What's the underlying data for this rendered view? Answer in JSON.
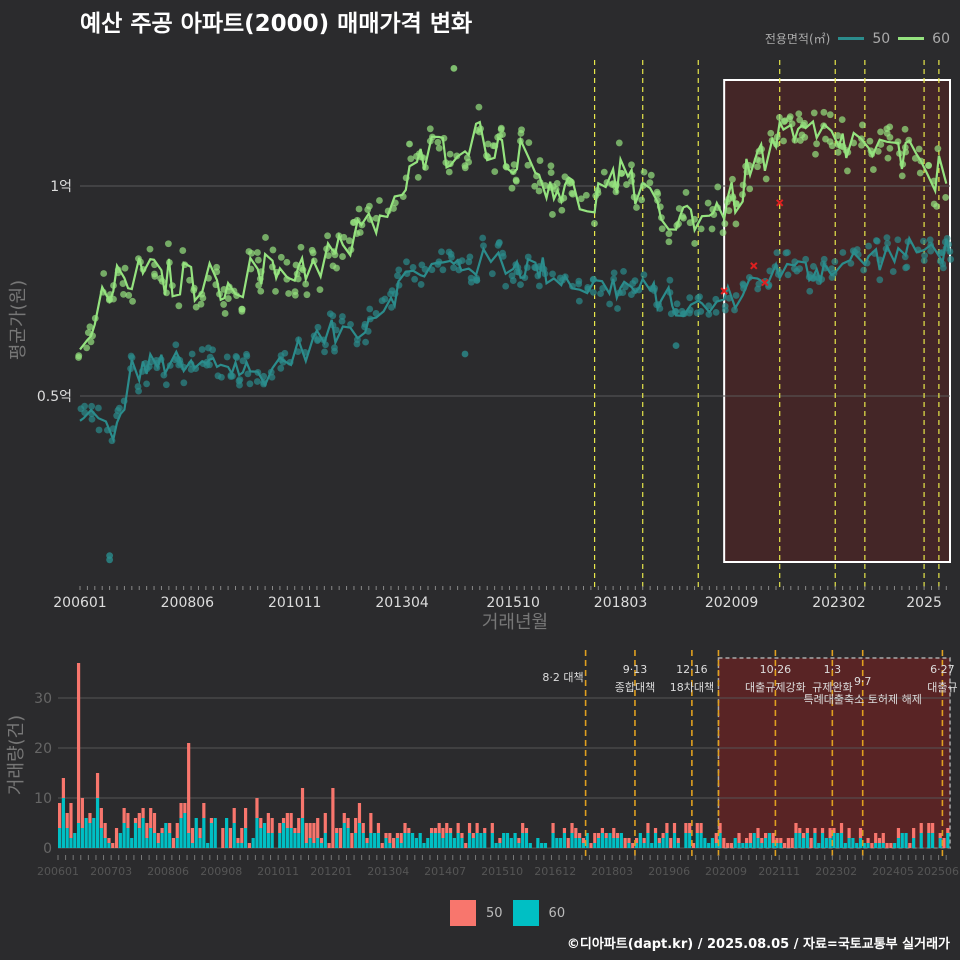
{
  "title": "예산 주공 아파트(2000) 매매가격 변화",
  "source": "©디아파트(dapt.kr) / 2025.08.05 / 자료=국토교통부 실거래가",
  "colors": {
    "bg": "#2b2b2d",
    "s50": "#2b8c8c",
    "s60": "#95e37f",
    "bar50": "#f8766d",
    "bar60": "#00bfc4",
    "vline": "#e8e84a",
    "vline2": "#e0a020",
    "highlight": "#5a2323"
  },
  "legend_top": {
    "title": "전용면적(㎡)",
    "items": [
      "50",
      "60"
    ]
  },
  "legend_bottom": {
    "items": [
      "50",
      "60"
    ]
  },
  "chart_data": [
    {
      "type": "line",
      "xlabel": "거래년월",
      "ylabel": "평균가(원)",
      "x_ticks": [
        "200601",
        "200806",
        "201011",
        "201304",
        "201510",
        "201803",
        "202009",
        "202302",
        "2025"
      ],
      "y_ticks": [
        {
          "value": 0.5,
          "label": "0.5억"
        },
        {
          "value": 1.0,
          "label": "1억"
        }
      ],
      "ylim": [
        0.05,
        1.3
      ],
      "xlim": [
        "2006-01",
        "2025-08"
      ],
      "series": [
        {
          "name": "50",
          "anchors": [
            [
              "2006-01",
              0.43
            ],
            [
              "2006-06",
              0.47
            ],
            [
              "2006-10",
              0.38
            ],
            [
              "2007-03",
              0.56
            ],
            [
              "2008-01",
              0.58
            ],
            [
              "2008-06",
              0.56
            ],
            [
              "2009-03",
              0.58
            ],
            [
              "2010-01",
              0.55
            ],
            [
              "2010-11",
              0.6
            ],
            [
              "2011-06",
              0.64
            ],
            [
              "2012-03",
              0.66
            ],
            [
              "2012-09",
              0.7
            ],
            [
              "2013-02",
              0.75
            ],
            [
              "2013-08",
              0.8
            ],
            [
              "2014-06",
              0.81
            ],
            [
              "2015-06",
              0.82
            ],
            [
              "2016-06",
              0.8
            ],
            [
              "2017-06",
              0.76
            ],
            [
              "2018-03",
              0.76
            ],
            [
              "2019-01",
              0.74
            ],
            [
              "2019-09",
              0.7
            ],
            [
              "2020-06",
              0.72
            ],
            [
              "2021-01",
              0.76
            ],
            [
              "2021-06",
              0.79
            ],
            [
              "2022-06",
              0.8
            ],
            [
              "2023-06",
              0.82
            ],
            [
              "2024-06",
              0.84
            ],
            [
              "2025-07",
              0.85
            ]
          ],
          "outliers": [
            [
              "2006-09",
              0.11
            ],
            [
              "2006-09",
              0.12
            ],
            [
              "2014-09",
              0.6
            ],
            [
              "2019-06",
              0.62
            ]
          ]
        },
        {
          "name": "60",
          "anchors": [
            [
              "2006-01",
              0.58
            ],
            [
              "2006-06",
              0.7
            ],
            [
              "2007-01",
              0.79
            ],
            [
              "2008-01",
              0.78
            ],
            [
              "2009-01",
              0.77
            ],
            [
              "2010-01",
              0.79
            ],
            [
              "2011-01",
              0.81
            ],
            [
              "2012-01",
              0.85
            ],
            [
              "2012-09",
              0.92
            ],
            [
              "2013-04",
              0.98
            ],
            [
              "2013-10",
              1.07
            ],
            [
              "2014-04",
              1.09
            ],
            [
              "2014-10",
              1.12
            ],
            [
              "2015-06",
              1.1
            ],
            [
              "2016-01",
              1.06
            ],
            [
              "2016-10",
              1.0
            ],
            [
              "2017-06",
              0.96
            ],
            [
              "2018-03",
              1.02
            ],
            [
              "2018-10",
              0.95
            ],
            [
              "2019-06",
              0.93
            ],
            [
              "2020-03",
              0.94
            ],
            [
              "2020-09",
              0.96
            ],
            [
              "2021-03",
              1.05
            ],
            [
              "2021-09",
              1.1
            ],
            [
              "2022-06",
              1.12
            ],
            [
              "2023-06",
              1.1
            ],
            [
              "2024-06",
              1.07
            ],
            [
              "2025-07",
              1.02
            ]
          ],
          "outliers": [
            [
              "2014-06",
              1.28
            ],
            [
              "2013-06",
              1.1
            ]
          ]
        }
      ],
      "highlight": {
        "from": "2020-07",
        "to": "2025-08"
      },
      "vlines": [
        "2017-08",
        "2018-09",
        "2019-12",
        "2021-10",
        "2023-01",
        "2023-09",
        "2025-01",
        "2025-05"
      ],
      "red_marks": [
        [
          "2020-07",
          0.75
        ],
        [
          "2021-03",
          0.81
        ],
        [
          "2021-06",
          0.77
        ],
        [
          "2021-10",
          0.96
        ]
      ]
    },
    {
      "type": "bar",
      "xlabel": "",
      "ylabel": "거래량(건)",
      "x_ticks": [
        "200601",
        "200703",
        "200806",
        "200908",
        "201011",
        "201201",
        "201304",
        "201407",
        "201510",
        "201612",
        "201803",
        "201906",
        "202009",
        "202111",
        "202302",
        "202405",
        "202506"
      ],
      "y_ticks": [
        0,
        10,
        20,
        30
      ],
      "ylim": [
        0,
        38
      ],
      "spikes": [
        [
          "2006-01",
          5,
          4
        ],
        [
          "2006-02",
          4,
          10
        ],
        [
          "2006-04",
          7,
          2
        ],
        [
          "2006-06",
          32,
          5
        ],
        [
          "2006-07",
          6,
          4
        ],
        [
          "2006-11",
          5,
          10
        ],
        [
          "2008-09",
          3,
          6
        ],
        [
          "2008-10",
          2,
          7
        ],
        [
          "2008-11",
          18,
          3
        ],
        [
          "2011-04",
          3,
          3
        ],
        [
          "2011-05",
          6,
          6
        ],
        [
          "2012-01",
          12,
          0
        ],
        [
          "2012-04",
          2,
          5
        ]
      ],
      "highlight": {
        "from": "2020-07",
        "to": "2025-08"
      },
      "policies": [
        {
          "date": "2017-08",
          "lines": [
            "8·2 대책"
          ]
        },
        {
          "date": "2018-09",
          "lines": [
            "9·13",
            "종합대책"
          ]
        },
        {
          "date": "2019-12",
          "lines": [
            "12·16",
            "18차대책"
          ]
        },
        {
          "date": "2020-07",
          "lines": []
        },
        {
          "date": "2021-10",
          "lines": [
            "10·26",
            "대출규제강화"
          ]
        },
        {
          "date": "2023-01",
          "lines": [
            "1·3",
            "규제완화"
          ]
        },
        {
          "date": "2023-09",
          "lines": [
            "9·7",
            "특례대출축소 토허제 해제"
          ]
        },
        {
          "date": "2025-06",
          "lines": [
            "6·27",
            "대출규"
          ]
        }
      ]
    }
  ]
}
